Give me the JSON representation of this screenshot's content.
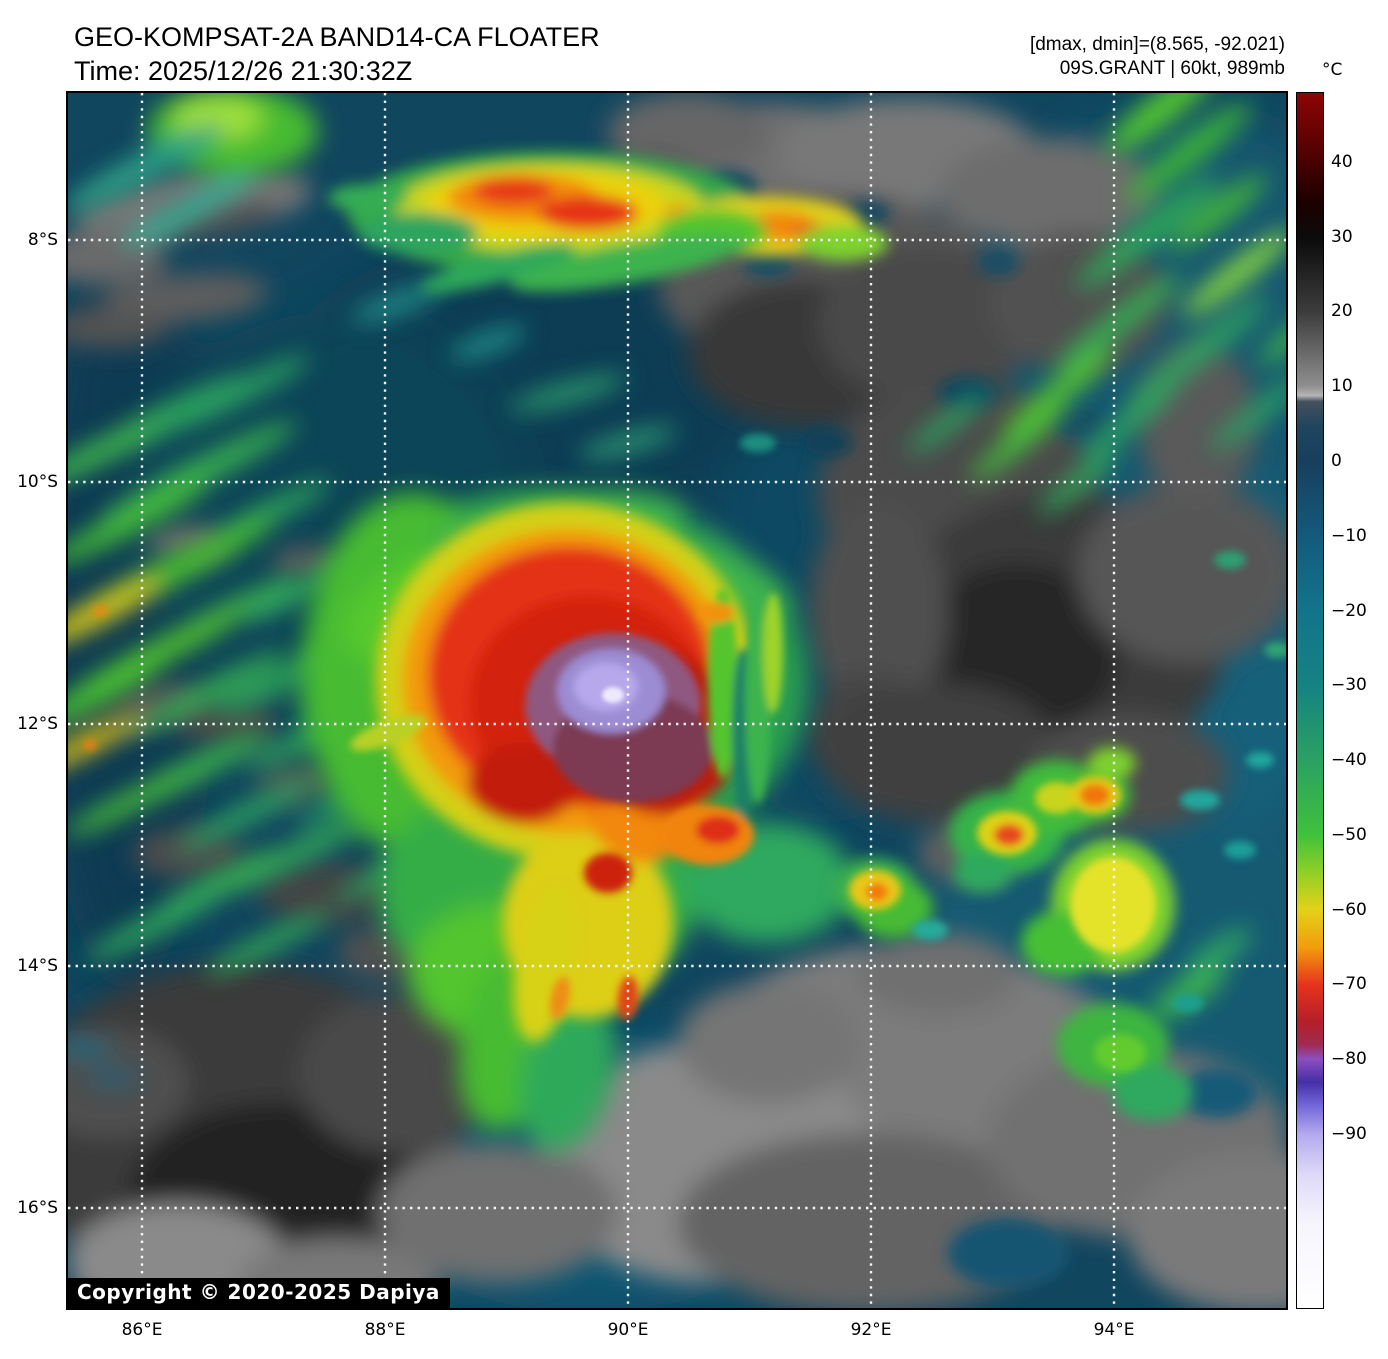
{
  "header": {
    "title": "GEO-KOMPSAT-2A BAND14-CA FLOATER",
    "time_line": "Time: 2025/12/26 21:30:32Z",
    "range_line": "[dmax, dmin]=(8.565, -92.021)",
    "storm_line": "09S.GRANT | 60kt, 989mb"
  },
  "colorbar": {
    "unit": "°C",
    "ticks": [
      "40",
      "30",
      "20",
      "10",
      "0",
      "−10",
      "−20",
      "−30",
      "−40",
      "−50",
      "−60",
      "−70",
      "−80",
      "−90"
    ]
  },
  "axes": {
    "lat_ticks": [
      "8°S",
      "10°S",
      "12°S",
      "14°S",
      "16°S"
    ],
    "lon_ticks": [
      "86°E",
      "88°E",
      "90°E",
      "92°E",
      "94°E"
    ]
  },
  "map": {
    "copyright": "Copyright © 2020-2025 Dapiya"
  },
  "palette": {
    "ocean_blue": "#11465f",
    "warm_cloud_gray": "#6f6f6f",
    "cold_green": "#46bb31",
    "colder_yellow": "#ecd011",
    "coldest_red": "#e43319",
    "overshoot_purple": "#9c8cd4",
    "grid_white": "#ffffff"
  }
}
